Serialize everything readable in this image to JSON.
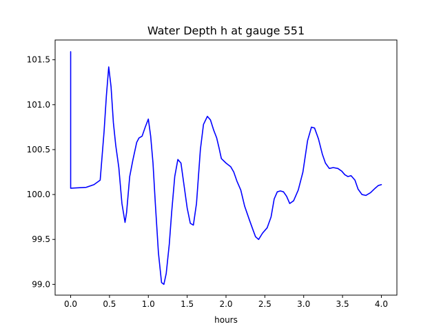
{
  "chart_data": {
    "type": "line",
    "title": "Water Depth h at gauge 551",
    "xlabel": "hours",
    "ylabel": "",
    "xlim": [
      -0.2,
      4.2
    ],
    "ylim": [
      98.88,
      101.72
    ],
    "grid": false,
    "x_ticks": [
      {
        "value": 0.0,
        "label": "0.0"
      },
      {
        "value": 0.5,
        "label": "0.5"
      },
      {
        "value": 1.0,
        "label": "1.0"
      },
      {
        "value": 1.5,
        "label": "1.5"
      },
      {
        "value": 2.0,
        "label": "2.0"
      },
      {
        "value": 2.5,
        "label": "2.5"
      },
      {
        "value": 3.0,
        "label": "3.0"
      },
      {
        "value": 3.5,
        "label": "3.5"
      },
      {
        "value": 4.0,
        "label": "4.0"
      }
    ],
    "y_ticks": [
      {
        "value": 99.0,
        "label": "99.0"
      },
      {
        "value": 99.5,
        "label": "99.5"
      },
      {
        "value": 100.0,
        "label": "100.0"
      },
      {
        "value": 100.5,
        "label": "100.5"
      },
      {
        "value": 101.0,
        "label": "101.0"
      },
      {
        "value": 101.5,
        "label": "101.5"
      }
    ],
    "series": [
      {
        "color": "#0000ff",
        "points": [
          [
            0.0,
            101.59
          ],
          [
            0.0,
            100.07
          ],
          [
            0.2,
            100.08
          ],
          [
            0.3,
            100.11
          ],
          [
            0.38,
            100.16
          ],
          [
            0.43,
            100.7
          ],
          [
            0.46,
            101.1
          ],
          [
            0.49,
            101.42
          ],
          [
            0.52,
            101.2
          ],
          [
            0.55,
            100.8
          ],
          [
            0.58,
            100.55
          ],
          [
            0.62,
            100.3
          ],
          [
            0.66,
            99.9
          ],
          [
            0.7,
            99.69
          ],
          [
            0.72,
            99.8
          ],
          [
            0.76,
            100.2
          ],
          [
            0.8,
            100.38
          ],
          [
            0.85,
            100.58
          ],
          [
            0.88,
            100.63
          ],
          [
            0.92,
            100.65
          ],
          [
            0.96,
            100.75
          ],
          [
            1.0,
            100.84
          ],
          [
            1.03,
            100.65
          ],
          [
            1.06,
            100.35
          ],
          [
            1.09,
            99.9
          ],
          [
            1.13,
            99.35
          ],
          [
            1.17,
            99.02
          ],
          [
            1.2,
            99.0
          ],
          [
            1.23,
            99.12
          ],
          [
            1.27,
            99.45
          ],
          [
            1.3,
            99.8
          ],
          [
            1.34,
            100.2
          ],
          [
            1.38,
            100.39
          ],
          [
            1.42,
            100.35
          ],
          [
            1.46,
            100.1
          ],
          [
            1.5,
            99.85
          ],
          [
            1.54,
            99.68
          ],
          [
            1.58,
            99.66
          ],
          [
            1.62,
            99.9
          ],
          [
            1.67,
            100.5
          ],
          [
            1.71,
            100.78
          ],
          [
            1.76,
            100.87
          ],
          [
            1.8,
            100.83
          ],
          [
            1.84,
            100.72
          ],
          [
            1.88,
            100.63
          ],
          [
            1.91,
            100.52
          ],
          [
            1.94,
            100.4
          ],
          [
            2.0,
            100.35
          ],
          [
            2.06,
            100.31
          ],
          [
            2.1,
            100.25
          ],
          [
            2.14,
            100.15
          ],
          [
            2.19,
            100.05
          ],
          [
            2.24,
            99.87
          ],
          [
            2.3,
            99.72
          ],
          [
            2.35,
            99.6
          ],
          [
            2.38,
            99.53
          ],
          [
            2.42,
            99.5
          ],
          [
            2.47,
            99.57
          ],
          [
            2.53,
            99.63
          ],
          [
            2.58,
            99.75
          ],
          [
            2.62,
            99.95
          ],
          [
            2.66,
            100.03
          ],
          [
            2.7,
            100.04
          ],
          [
            2.74,
            100.03
          ],
          [
            2.78,
            99.98
          ],
          [
            2.82,
            99.9
          ],
          [
            2.87,
            99.93
          ],
          [
            2.93,
            100.05
          ],
          [
            2.99,
            100.25
          ],
          [
            3.05,
            100.6
          ],
          [
            3.1,
            100.75
          ],
          [
            3.14,
            100.74
          ],
          [
            3.19,
            100.62
          ],
          [
            3.24,
            100.45
          ],
          [
            3.28,
            100.35
          ],
          [
            3.33,
            100.29
          ],
          [
            3.38,
            100.3
          ],
          [
            3.44,
            100.29
          ],
          [
            3.49,
            100.26
          ],
          [
            3.53,
            100.22
          ],
          [
            3.57,
            100.2
          ],
          [
            3.61,
            100.21
          ],
          [
            3.66,
            100.16
          ],
          [
            3.7,
            100.06
          ],
          [
            3.75,
            100.0
          ],
          [
            3.8,
            99.99
          ],
          [
            3.86,
            100.02
          ],
          [
            3.92,
            100.07
          ],
          [
            3.96,
            100.1
          ],
          [
            4.0,
            100.11
          ]
        ]
      }
    ]
  }
}
